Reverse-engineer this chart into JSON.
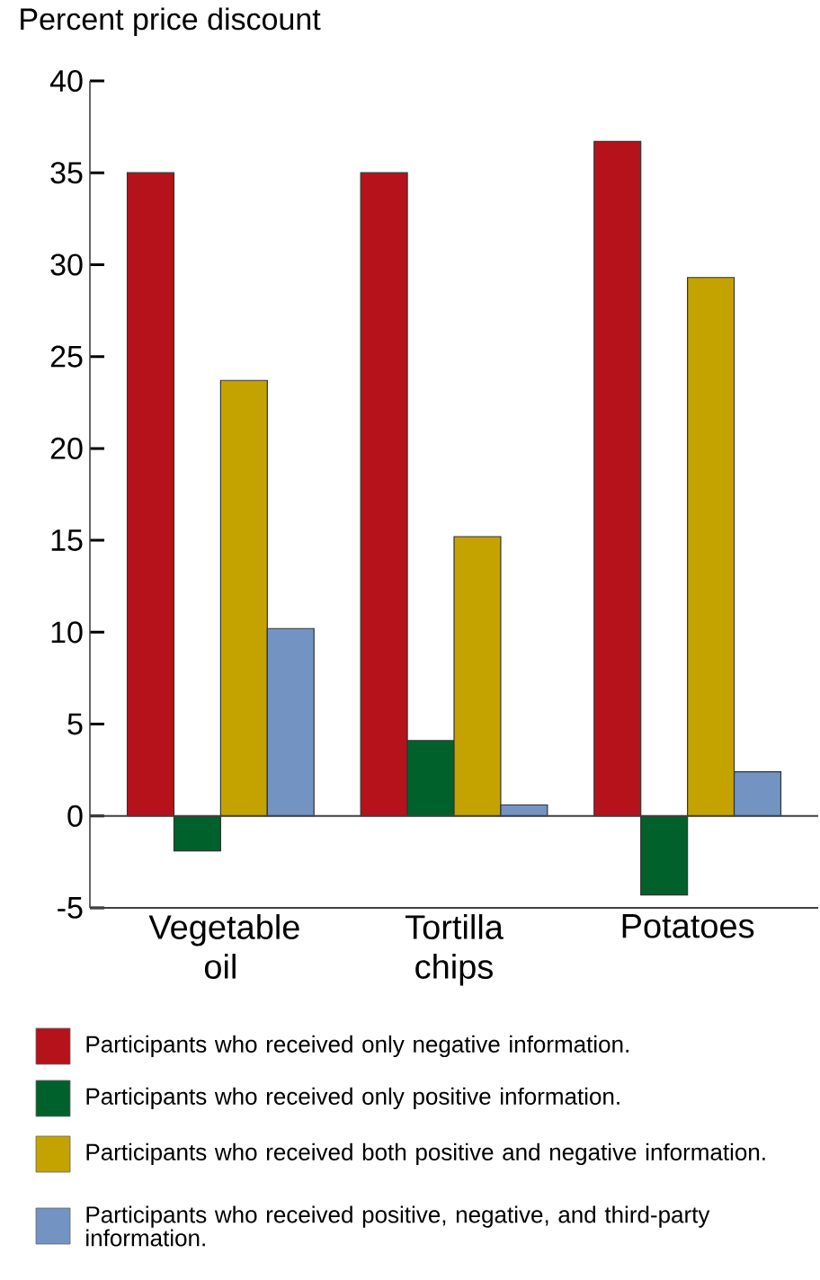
{
  "chart_data": {
    "type": "bar",
    "title": "Percent price discount",
    "categories": [
      "Vegetable oil",
      "Tortilla chips",
      "Potatoes"
    ],
    "series": [
      {
        "name": "Participants who received only negative information.",
        "color": "#b5121b",
        "values": [
          35,
          35,
          36.7
        ]
      },
      {
        "name": "Participants who received only positive information.",
        "color": "#00612b",
        "values": [
          -1.9,
          4.1,
          -4.3
        ]
      },
      {
        "name": "Participants who received both positive and negative information.",
        "color": "#c4a300",
        "values": [
          23.7,
          15.2,
          29.3
        ]
      },
      {
        "name": "Participants who received positive, negative, and third-party information.",
        "color": "#7393c3",
        "values": [
          10.2,
          0.6,
          2.4
        ]
      }
    ],
    "ylim": [
      -5,
      40
    ],
    "yticks": [
      -5,
      0,
      5,
      10,
      15,
      20,
      25,
      30,
      35,
      40
    ],
    "legend": "bottom"
  }
}
